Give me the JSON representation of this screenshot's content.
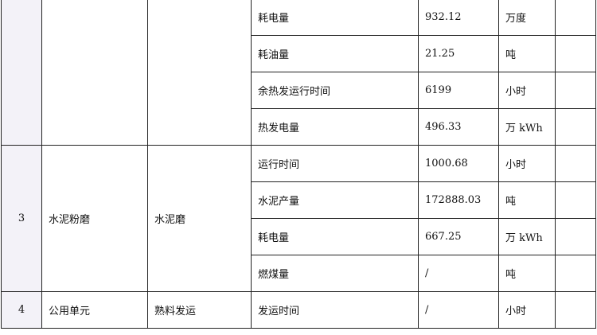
{
  "table": {
    "rows": [
      {
        "no": "",
        "process": "",
        "equipment": "",
        "items": [
          {
            "item": "耗电量",
            "value": "932.12",
            "unit": "万度"
          },
          {
            "item": "耗油量",
            "value": "21.25",
            "unit": "吨"
          },
          {
            "item": "余热发运行时间",
            "value": "6199",
            "unit": "小时"
          },
          {
            "item": "热发电量",
            "value": "496.33",
            "unit": "万 kWh"
          }
        ]
      },
      {
        "no": "3",
        "process": "水泥粉磨",
        "equipment": "水泥磨",
        "items": [
          {
            "item": "运行时间",
            "value": "1000.68",
            "unit": "小时"
          },
          {
            "item": "水泥产量",
            "value": "172888.03",
            "unit": "吨"
          },
          {
            "item": "耗电量",
            "value": "667.25",
            "unit": "万 kWh"
          },
          {
            "item": "燃煤量",
            "value": "/",
            "unit": "吨"
          }
        ]
      },
      {
        "no": "4",
        "process": "公用单元",
        "equipment": "熟料发运",
        "items": [
          {
            "item": "发运时间",
            "value": "/",
            "unit": "小时"
          }
        ]
      }
    ]
  }
}
